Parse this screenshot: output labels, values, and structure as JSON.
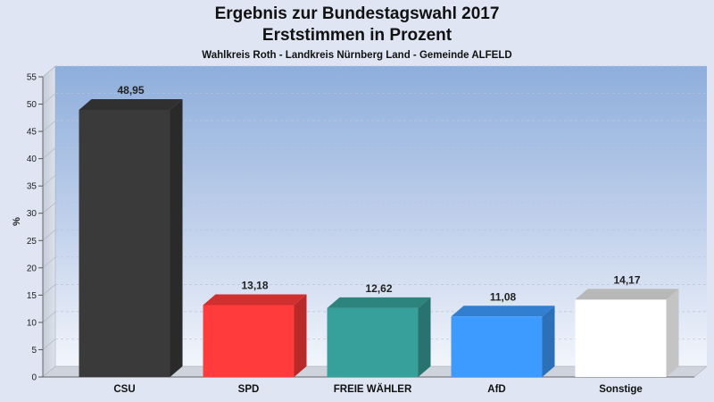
{
  "chart_data": {
    "type": "bar",
    "title": "Ergebnis zur Bundestagswahl 2017",
    "subtitle": "Erststimmen in Prozent",
    "caption": "Wahlkreis Roth - Landkreis Nürnberg Land - Gemeinde ALFELD",
    "ylabel": "%",
    "ylim": [
      0,
      55
    ],
    "yticks": [
      "0",
      "5",
      "10",
      "15",
      "20",
      "25",
      "30",
      "35",
      "40",
      "45",
      "50",
      "55"
    ],
    "categories": [
      "CSU",
      "SPD",
      "FREIE WÄHLER",
      "AfD",
      "Sonstige"
    ],
    "values": [
      48.95,
      13.18,
      12.62,
      11.08,
      14.17
    ],
    "value_labels": [
      "48,95",
      "13,18",
      "12,62",
      "11,08",
      "14,17"
    ],
    "colors": [
      "#3a3a3a",
      "#ff3b3b",
      "#37a09a",
      "#3d9bff",
      "#ffffff"
    ],
    "grid": true,
    "legend": "none"
  }
}
